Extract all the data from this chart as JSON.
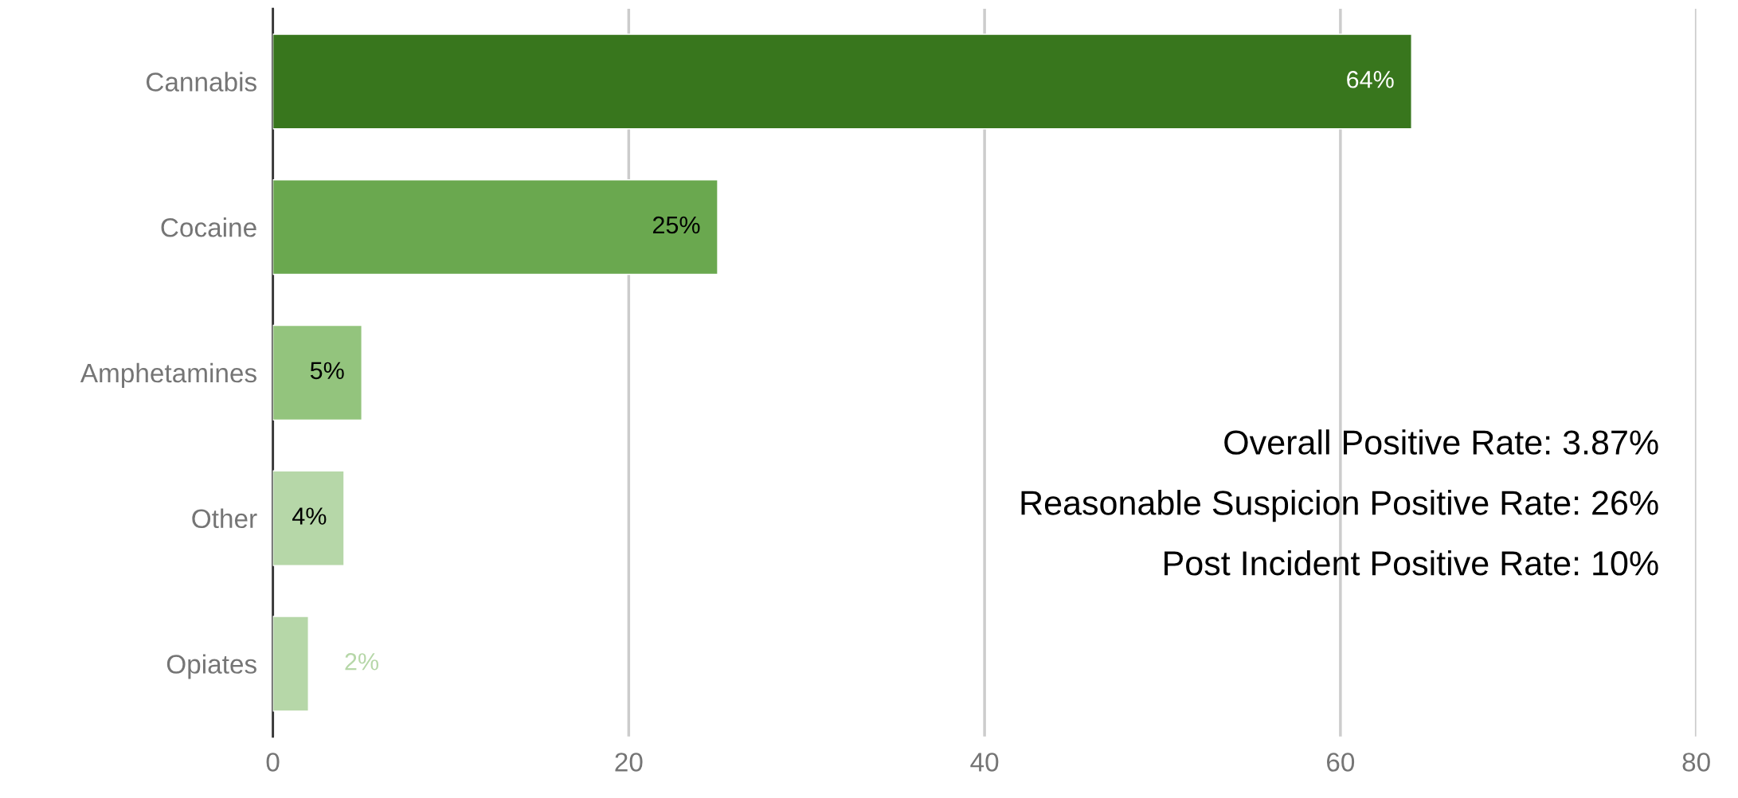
{
  "chart_data": {
    "type": "bar",
    "orientation": "horizontal",
    "categories": [
      "Cannabis",
      "Cocaine",
      "Amphetamines",
      "Other",
      "Opiates"
    ],
    "values": [
      64,
      25,
      5,
      4,
      2
    ],
    "colors": [
      "#38761d",
      "#6aa84f",
      "#93c47d",
      "#b6d7a8",
      "#b6d7a8"
    ],
    "value_labels": [
      "64%",
      "25%",
      "5%",
      "4%",
      "2%"
    ],
    "xlim": [
      0,
      80
    ],
    "xticks": [
      0,
      20,
      40,
      60,
      80
    ],
    "grid": "x",
    "annotations": [
      "Overall Positive Rate: 3.87%",
      "Reasonable Suspicion Positive Rate: 26%",
      "Post Incident Positive Rate: 10%"
    ]
  }
}
